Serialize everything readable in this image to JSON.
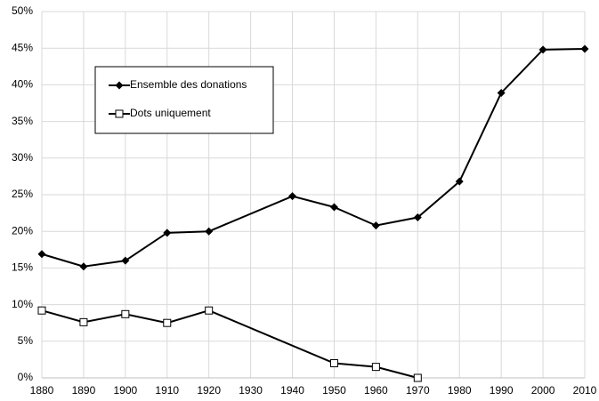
{
  "chart_data": {
    "type": "line",
    "xlim": [
      1880,
      2010
    ],
    "xticks": [
      1880,
      1890,
      1900,
      1910,
      1920,
      1930,
      1940,
      1950,
      1960,
      1970,
      1980,
      1990,
      2000,
      2010
    ],
    "ylim": [
      0,
      50
    ],
    "yticks": [
      {
        "value": 0,
        "label": "0%"
      },
      {
        "value": 5,
        "label": "5%"
      },
      {
        "value": 10,
        "label": "10%"
      },
      {
        "value": 15,
        "label": "15%"
      },
      {
        "value": 20,
        "label": "20%"
      },
      {
        "value": 25,
        "label": "25%"
      },
      {
        "value": 30,
        "label": "30%"
      },
      {
        "value": 35,
        "label": "35%"
      },
      {
        "value": 40,
        "label": "40%"
      },
      {
        "value": 45,
        "label": "45%"
      },
      {
        "value": 50,
        "label": "50%"
      }
    ],
    "grid": true,
    "legend": "upper left",
    "series": [
      {
        "name": "Ensemble des donations",
        "color": "#000000",
        "marker": "diamond",
        "x": [
          1880,
          1890,
          1900,
          1910,
          1920,
          1940,
          1950,
          1960,
          1970,
          1980,
          1990,
          2000,
          2010
        ],
        "values": [
          16.9,
          15.2,
          16.0,
          19.8,
          20.0,
          24.8,
          23.3,
          20.8,
          21.9,
          26.8,
          38.9,
          44.8,
          44.9
        ]
      },
      {
        "name": "Dots uniquement",
        "color": "#000000",
        "marker": "square",
        "x": [
          1880,
          1890,
          1900,
          1910,
          1920,
          1950,
          1960,
          1970
        ],
        "values": [
          9.2,
          7.6,
          8.7,
          7.5,
          9.2,
          2.0,
          1.5,
          0.0
        ]
      }
    ]
  }
}
